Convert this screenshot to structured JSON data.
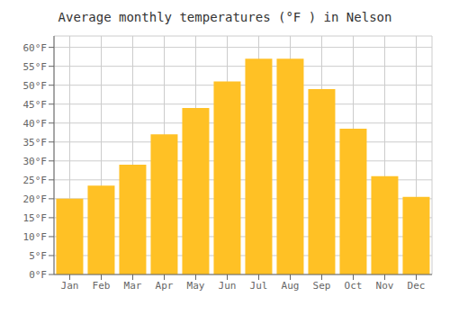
{
  "chart_data": {
    "type": "bar",
    "title": "Average monthly temperatures (°F ) in Nelson",
    "categories": [
      "Jan",
      "Feb",
      "Mar",
      "Apr",
      "May",
      "Jun",
      "Jul",
      "Aug",
      "Sep",
      "Oct",
      "Nov",
      "Dec"
    ],
    "values": [
      20,
      23.5,
      29,
      37,
      44,
      51,
      57,
      57,
      49,
      38.5,
      26,
      20.5
    ],
    "color": "#FFC125",
    "ylim": [
      0,
      63
    ],
    "yticks": [
      {
        "value": 0,
        "label": "0°F"
      },
      {
        "value": 5,
        "label": "5°F"
      },
      {
        "value": 10,
        "label": "10°F"
      },
      {
        "value": 15,
        "label": "15°F"
      },
      {
        "value": 20,
        "label": "20°F"
      },
      {
        "value": 25,
        "label": "25°F"
      },
      {
        "value": 30,
        "label": "30°F"
      },
      {
        "value": 35,
        "label": "35°F"
      },
      {
        "value": 40,
        "label": "40°F"
      },
      {
        "value": 45,
        "label": "45°F"
      },
      {
        "value": 50,
        "label": "50°F"
      },
      {
        "value": 55,
        "label": "55°F"
      },
      {
        "value": 60,
        "label": "60°F"
      }
    ],
    "grid": true
  }
}
